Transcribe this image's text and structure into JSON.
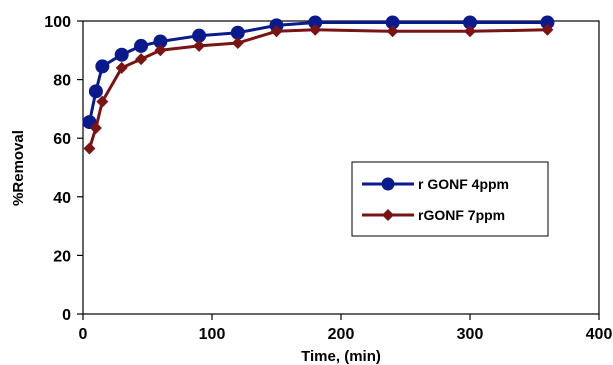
{
  "chart_data": {
    "type": "line",
    "xlabel": "Time, (min)",
    "ylabel": "%Removal",
    "xlim": [
      0,
      400
    ],
    "ylim": [
      0,
      100
    ],
    "xticks": [
      0,
      100,
      200,
      300,
      400
    ],
    "yticks": [
      0,
      20,
      40,
      60,
      80,
      100
    ],
    "grid": false,
    "legend_position": "right-center",
    "series": [
      {
        "name": "r GONF 4ppm",
        "color": "#0a1a8c",
        "marker": "circle",
        "x": [
          5,
          10,
          15,
          30,
          45,
          60,
          90,
          120,
          150,
          180,
          240,
          300,
          360
        ],
        "y": [
          65.5,
          76,
          84.5,
          88.5,
          91.5,
          93,
          95,
          96,
          98.5,
          99.5,
          99.5,
          99.5,
          99.5
        ]
      },
      {
        "name": "rGONF 7ppm",
        "color": "#7a1414",
        "marker": "diamond",
        "x": [
          5,
          10,
          15,
          30,
          45,
          60,
          90,
          120,
          150,
          180,
          240,
          300,
          360
        ],
        "y": [
          56.5,
          63.5,
          72.5,
          84,
          87,
          90,
          91.5,
          92.5,
          96.5,
          97,
          96.5,
          96.5,
          97
        ]
      }
    ]
  }
}
